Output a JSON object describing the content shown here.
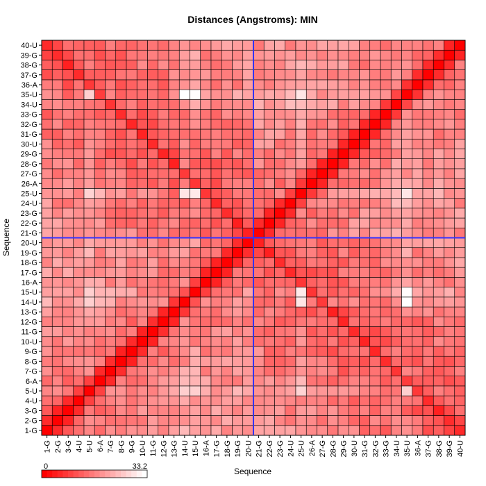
{
  "chart_data": {
    "type": "heatmap",
    "title": "Distances (Angstroms):  MIN",
    "xlabel": "Sequence",
    "ylabel": "Sequence",
    "labels": [
      "1-G",
      "2-G",
      "3-G",
      "4-U",
      "5-U",
      "6-A",
      "7-G",
      "8-G",
      "9-G",
      "10-U",
      "11-G",
      "12-G",
      "13-G",
      "14-U",
      "15-U",
      "16-A",
      "17-G",
      "18-G",
      "19-G",
      "20-U",
      "21-G",
      "22-G",
      "23-G",
      "24-U",
      "25-U",
      "26-A",
      "27-G",
      "28-G",
      "29-G",
      "30-U",
      "31-G",
      "32-G",
      "33-G",
      "34-U",
      "35-U",
      "36-A",
      "37-G",
      "38-G",
      "39-G",
      "40-U"
    ],
    "colorbar": {
      "min_label": "0",
      "max_label": "33.2",
      "min": 0,
      "max": 33.2
    },
    "color_low": "#ff0000",
    "color_high": "#ffffff",
    "divider_color": "#3333ff",
    "divider_after_index": 20,
    "diagonal_value": 0,
    "intra_chain_base": 9.5,
    "intra_chain_slope": 1.0,
    "inter_chain_base": 8.0,
    "inter_chain_slope": 0.9,
    "special_bright_pairs": [
      {
        "i": 14,
        "j": 35,
        "value": 33.2
      },
      {
        "i": 15,
        "j": 35,
        "value": 33.0
      },
      {
        "i": 15,
        "j": 25,
        "value": 30.5
      },
      {
        "i": 14,
        "j": 25,
        "value": 30.0
      },
      {
        "i": 5,
        "j": 25,
        "value": 27.5
      },
      {
        "i": 5,
        "j": 14,
        "value": 27.0
      },
      {
        "i": 5,
        "j": 15,
        "value": 27.0
      },
      {
        "i": 5,
        "j": 35,
        "value": 27.0
      },
      {
        "i": 25,
        "j": 35,
        "value": 30.0
      },
      {
        "i": 6,
        "j": 25,
        "value": 24.0
      },
      {
        "i": 6,
        "j": 14,
        "value": 24.0
      }
    ]
  }
}
